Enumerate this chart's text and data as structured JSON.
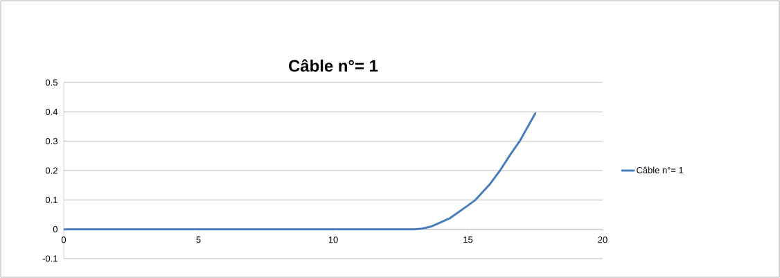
{
  "chart_data": {
    "type": "line",
    "title": "Câble n°= 1",
    "series": [
      {
        "name": "Câble n°= 1",
        "color": "#4a7ebb",
        "x": [
          0,
          5,
          10,
          13.0,
          13.3,
          13.66,
          14.34,
          15.0,
          15.28,
          15.8,
          16.19,
          16.57,
          16.92,
          17.5
        ],
        "values": [
          0,
          0,
          0,
          0,
          0.002,
          0.01,
          0.038,
          0.081,
          0.1,
          0.152,
          0.2,
          0.254,
          0.3,
          0.395
        ]
      }
    ],
    "xlim": [
      0,
      20
    ],
    "xticks": [
      0,
      5,
      10,
      15,
      20
    ],
    "ylim": [
      -0.1,
      0.5
    ],
    "yticks": [
      -0.1,
      0,
      0.1,
      0.2,
      0.3,
      0.4,
      0.5
    ],
    "grid": "y",
    "legend": "right",
    "marker": "none",
    "line_style": "solid"
  }
}
